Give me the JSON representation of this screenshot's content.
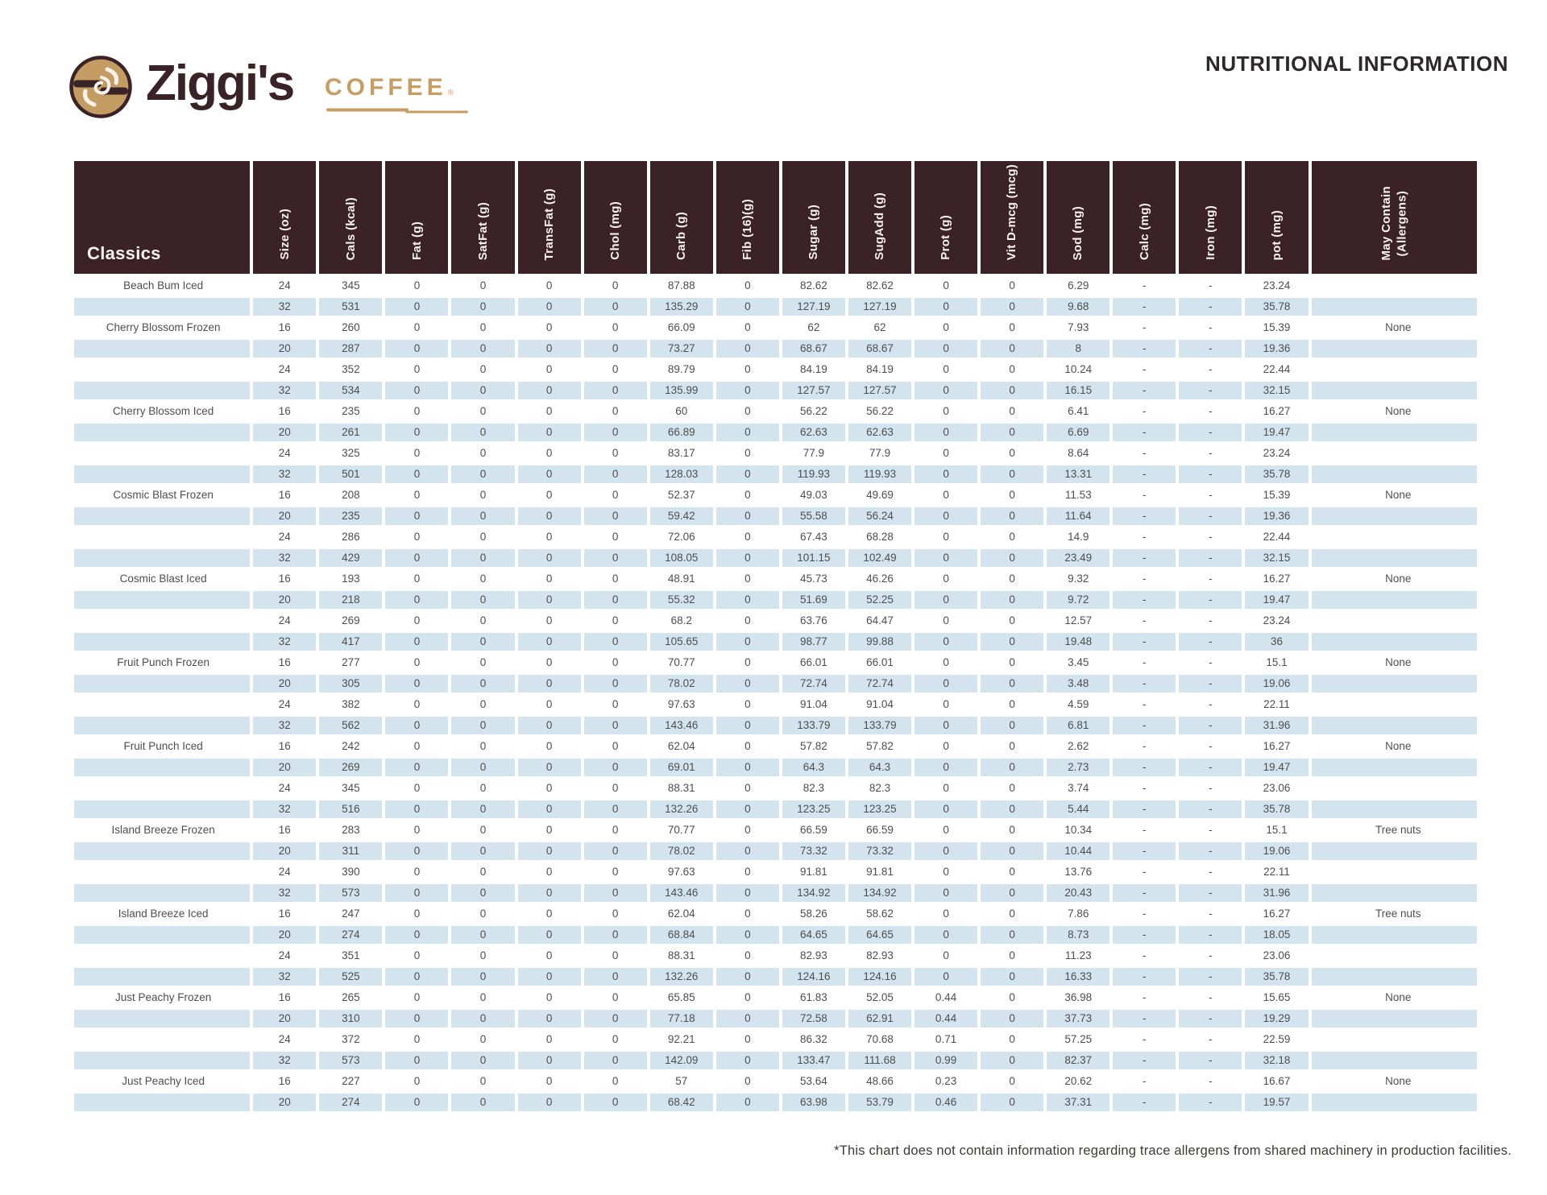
{
  "brand": {
    "name": "Ziggi's",
    "sub": "COFFEE",
    "registered": "®"
  },
  "title": "NUTRITIONAL INFORMATION",
  "colors": {
    "header_brown": "#3b2227",
    "row_blue": "#d3e4ee",
    "brand_tan": "#c79e62",
    "brand_brown": "#3a2326"
  },
  "table": {
    "category_label": "Classics",
    "columns": [
      "Size (oz)",
      "Cals (kcal)",
      "Fat (g)",
      "SatFat (g)",
      "TransFat (g)",
      "Chol (mg)",
      "Carb (g)",
      "Fib (16)(g)",
      "Sugar (g)",
      "SugAdd (g)",
      "Prot (g)",
      "Vit D-mcg (mcg)",
      "Sod (mg)",
      "Calc (mg)",
      "Iron (mg)",
      "pot (mg)"
    ],
    "allergen_column": "May Contain\n(Allergens)",
    "drinks": [
      {
        "name": "Beach Bum Iced",
        "allergen": "",
        "rows": [
          [
            "24",
            "345",
            "0",
            "0",
            "0",
            "0",
            "87.88",
            "0",
            "82.62",
            "82.62",
            "0",
            "0",
            "6.29",
            "-",
            "-",
            "23.24"
          ],
          [
            "32",
            "531",
            "0",
            "0",
            "0",
            "0",
            "135.29",
            "0",
            "127.19",
            "127.19",
            "0",
            "0",
            "9.68",
            "-",
            "-",
            "35.78"
          ]
        ]
      },
      {
        "name": "Cherry Blossom Frozen",
        "allergen": "None",
        "rows": [
          [
            "16",
            "260",
            "0",
            "0",
            "0",
            "0",
            "66.09",
            "0",
            "62",
            "62",
            "0",
            "0",
            "7.93",
            "-",
            "-",
            "15.39"
          ],
          [
            "20",
            "287",
            "0",
            "0",
            "0",
            "0",
            "73.27",
            "0",
            "68.67",
            "68.67",
            "0",
            "0",
            "8",
            "-",
            "-",
            "19.36"
          ],
          [
            "24",
            "352",
            "0",
            "0",
            "0",
            "0",
            "89.79",
            "0",
            "84.19",
            "84.19",
            "0",
            "0",
            "10.24",
            "-",
            "-",
            "22.44"
          ],
          [
            "32",
            "534",
            "0",
            "0",
            "0",
            "0",
            "135.99",
            "0",
            "127.57",
            "127.57",
            "0",
            "0",
            "16.15",
            "-",
            "-",
            "32.15"
          ]
        ]
      },
      {
        "name": "Cherry Blossom Iced",
        "allergen": "None",
        "rows": [
          [
            "16",
            "235",
            "0",
            "0",
            "0",
            "0",
            "60",
            "0",
            "56.22",
            "56.22",
            "0",
            "0",
            "6.41",
            "-",
            "-",
            "16.27"
          ],
          [
            "20",
            "261",
            "0",
            "0",
            "0",
            "0",
            "66.89",
            "0",
            "62.63",
            "62.63",
            "0",
            "0",
            "6.69",
            "-",
            "-",
            "19.47"
          ],
          [
            "24",
            "325",
            "0",
            "0",
            "0",
            "0",
            "83.17",
            "0",
            "77.9",
            "77.9",
            "0",
            "0",
            "8.64",
            "-",
            "-",
            "23.24"
          ],
          [
            "32",
            "501",
            "0",
            "0",
            "0",
            "0",
            "128.03",
            "0",
            "119.93",
            "119.93",
            "0",
            "0",
            "13.31",
            "-",
            "-",
            "35.78"
          ]
        ]
      },
      {
        "name": "Cosmic Blast Frozen",
        "allergen": "None",
        "rows": [
          [
            "16",
            "208",
            "0",
            "0",
            "0",
            "0",
            "52.37",
            "0",
            "49.03",
            "49.69",
            "0",
            "0",
            "11.53",
            "-",
            "-",
            "15.39"
          ],
          [
            "20",
            "235",
            "0",
            "0",
            "0",
            "0",
            "59.42",
            "0",
            "55.58",
            "56.24",
            "0",
            "0",
            "11.64",
            "-",
            "-",
            "19.36"
          ],
          [
            "24",
            "286",
            "0",
            "0",
            "0",
            "0",
            "72.06",
            "0",
            "67.43",
            "68.28",
            "0",
            "0",
            "14.9",
            "-",
            "-",
            "22.44"
          ],
          [
            "32",
            "429",
            "0",
            "0",
            "0",
            "0",
            "108.05",
            "0",
            "101.15",
            "102.49",
            "0",
            "0",
            "23.49",
            "-",
            "-",
            "32.15"
          ]
        ]
      },
      {
        "name": "Cosmic Blast Iced",
        "allergen": "None",
        "rows": [
          [
            "16",
            "193",
            "0",
            "0",
            "0",
            "0",
            "48.91",
            "0",
            "45.73",
            "46.26",
            "0",
            "0",
            "9.32",
            "-",
            "-",
            "16.27"
          ],
          [
            "20",
            "218",
            "0",
            "0",
            "0",
            "0",
            "55.32",
            "0",
            "51.69",
            "52.25",
            "0",
            "0",
            "9.72",
            "-",
            "-",
            "19.47"
          ],
          [
            "24",
            "269",
            "0",
            "0",
            "0",
            "0",
            "68.2",
            "0",
            "63.76",
            "64.47",
            "0",
            "0",
            "12.57",
            "-",
            "-",
            "23.24"
          ],
          [
            "32",
            "417",
            "0",
            "0",
            "0",
            "0",
            "105.65",
            "0",
            "98.77",
            "99.88",
            "0",
            "0",
            "19.48",
            "-",
            "-",
            "36"
          ]
        ]
      },
      {
        "name": "Fruit Punch Frozen",
        "allergen": "None",
        "rows": [
          [
            "16",
            "277",
            "0",
            "0",
            "0",
            "0",
            "70.77",
            "0",
            "66.01",
            "66.01",
            "0",
            "0",
            "3.45",
            "-",
            "-",
            "15.1"
          ],
          [
            "20",
            "305",
            "0",
            "0",
            "0",
            "0",
            "78.02",
            "0",
            "72.74",
            "72.74",
            "0",
            "0",
            "3.48",
            "-",
            "-",
            "19.06"
          ],
          [
            "24",
            "382",
            "0",
            "0",
            "0",
            "0",
            "97.63",
            "0",
            "91.04",
            "91.04",
            "0",
            "0",
            "4.59",
            "-",
            "-",
            "22.11"
          ],
          [
            "32",
            "562",
            "0",
            "0",
            "0",
            "0",
            "143.46",
            "0",
            "133.79",
            "133.79",
            "0",
            "0",
            "6.81",
            "-",
            "-",
            "31.96"
          ]
        ]
      },
      {
        "name": "Fruit Punch Iced",
        "allergen": "None",
        "rows": [
          [
            "16",
            "242",
            "0",
            "0",
            "0",
            "0",
            "62.04",
            "0",
            "57.82",
            "57.82",
            "0",
            "0",
            "2.62",
            "-",
            "-",
            "16.27"
          ],
          [
            "20",
            "269",
            "0",
            "0",
            "0",
            "0",
            "69.01",
            "0",
            "64.3",
            "64.3",
            "0",
            "0",
            "2.73",
            "-",
            "-",
            "19.47"
          ],
          [
            "24",
            "345",
            "0",
            "0",
            "0",
            "0",
            "88.31",
            "0",
            "82.3",
            "82.3",
            "0",
            "0",
            "3.74",
            "-",
            "-",
            "23.06"
          ],
          [
            "32",
            "516",
            "0",
            "0",
            "0",
            "0",
            "132.26",
            "0",
            "123.25",
            "123.25",
            "0",
            "0",
            "5.44",
            "-",
            "-",
            "35.78"
          ]
        ]
      },
      {
        "name": "Island Breeze Frozen",
        "allergen": "Tree nuts",
        "rows": [
          [
            "16",
            "283",
            "0",
            "0",
            "0",
            "0",
            "70.77",
            "0",
            "66.59",
            "66.59",
            "0",
            "0",
            "10.34",
            "-",
            "-",
            "15.1"
          ],
          [
            "20",
            "311",
            "0",
            "0",
            "0",
            "0",
            "78.02",
            "0",
            "73.32",
            "73.32",
            "0",
            "0",
            "10.44",
            "-",
            "-",
            "19.06"
          ],
          [
            "24",
            "390",
            "0",
            "0",
            "0",
            "0",
            "97.63",
            "0",
            "91.81",
            "91.81",
            "0",
            "0",
            "13.76",
            "-",
            "-",
            "22.11"
          ],
          [
            "32",
            "573",
            "0",
            "0",
            "0",
            "0",
            "143.46",
            "0",
            "134.92",
            "134.92",
            "0",
            "0",
            "20.43",
            "-",
            "-",
            "31.96"
          ]
        ]
      },
      {
        "name": "Island Breeze Iced",
        "allergen": "Tree nuts",
        "rows": [
          [
            "16",
            "247",
            "0",
            "0",
            "0",
            "0",
            "62.04",
            "0",
            "58.26",
            "58.62",
            "0",
            "0",
            "7.86",
            "-",
            "-",
            "16.27"
          ],
          [
            "20",
            "274",
            "0",
            "0",
            "0",
            "0",
            "68.84",
            "0",
            "64.65",
            "64.65",
            "0",
            "0",
            "8.73",
            "-",
            "-",
            "18.05"
          ],
          [
            "24",
            "351",
            "0",
            "0",
            "0",
            "0",
            "88.31",
            "0",
            "82.93",
            "82.93",
            "0",
            "0",
            "11.23",
            "-",
            "-",
            "23.06"
          ],
          [
            "32",
            "525",
            "0",
            "0",
            "0",
            "0",
            "132.26",
            "0",
            "124.16",
            "124.16",
            "0",
            "0",
            "16.33",
            "-",
            "-",
            "35.78"
          ]
        ]
      },
      {
        "name": "Just Peachy Frozen",
        "allergen": "None",
        "rows": [
          [
            "16",
            "265",
            "0",
            "0",
            "0",
            "0",
            "65.85",
            "0",
            "61.83",
            "52.05",
            "0.44",
            "0",
            "36.98",
            "-",
            "-",
            "15.65"
          ],
          [
            "20",
            "310",
            "0",
            "0",
            "0",
            "0",
            "77.18",
            "0",
            "72.58",
            "62.91",
            "0.44",
            "0",
            "37.73",
            "-",
            "-",
            "19.29"
          ],
          [
            "24",
            "372",
            "0",
            "0",
            "0",
            "0",
            "92.21",
            "0",
            "86.32",
            "70.68",
            "0.71",
            "0",
            "57.25",
            "-",
            "-",
            "22.59"
          ],
          [
            "32",
            "573",
            "0",
            "0",
            "0",
            "0",
            "142.09",
            "0",
            "133.47",
            "111.68",
            "0.99",
            "0",
            "82.37",
            "-",
            "-",
            "32.18"
          ]
        ]
      },
      {
        "name": "Just Peachy Iced",
        "allergen": "None",
        "rows": [
          [
            "16",
            "227",
            "0",
            "0",
            "0",
            "0",
            "57",
            "0",
            "53.64",
            "48.66",
            "0.23",
            "0",
            "20.62",
            "-",
            "-",
            "16.67"
          ],
          [
            "20",
            "274",
            "0",
            "0",
            "0",
            "0",
            "68.42",
            "0",
            "63.98",
            "53.79",
            "0.46",
            "0",
            "37.31",
            "-",
            "-",
            "19.57"
          ]
        ]
      }
    ]
  },
  "footnote": "*This chart does not contain information regarding trace allergens from shared machinery in production facilities."
}
